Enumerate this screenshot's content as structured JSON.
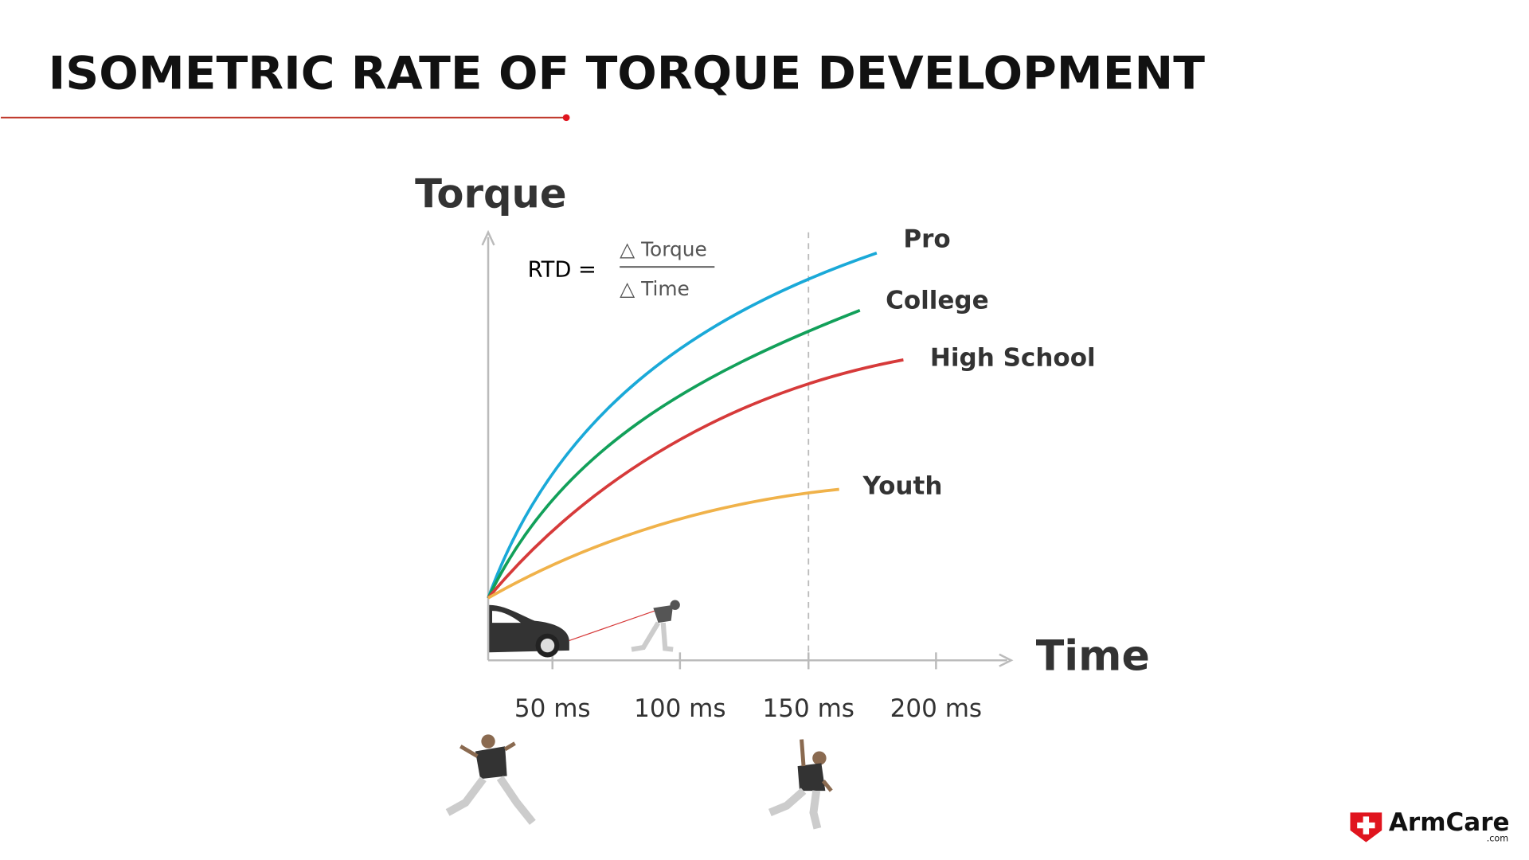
{
  "title": "ISOMETRIC RATE OF TORQUE DEVELOPMENT",
  "y_axis_label": "Torque",
  "x_axis_label": "Time",
  "formula": {
    "lhs": "RTD =",
    "numerator": "△ Torque",
    "denominator": "△ Time"
  },
  "curves": [
    {
      "label": "Pro"
    },
    {
      "label": "College"
    },
    {
      "label": "High School"
    },
    {
      "label": "Youth"
    }
  ],
  "x_ticks": [
    "50 ms",
    "100 ms",
    "150 ms",
    "200 ms"
  ],
  "logo": {
    "name": "ArmCare",
    "suffix": ".com"
  }
}
